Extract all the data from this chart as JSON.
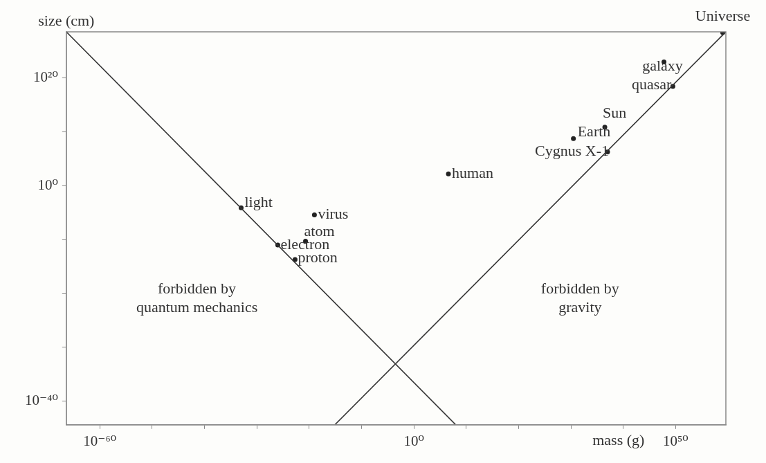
{
  "chart_data": {
    "type": "scatter",
    "xlabel": "mass (g)",
    "ylabel": "size (cm)",
    "log": "xy",
    "grid": false,
    "legend": false,
    "marker": "circle",
    "xlim": [
      4e-67,
      4e+59
    ],
    "ylim": [
      4e-45,
      4e+28
    ],
    "xticks": [
      {
        "value": 1e-60,
        "label": "10⁻⁶⁰"
      },
      {
        "value": 1e-50,
        "label": null
      },
      {
        "value": 1e-40,
        "label": null
      },
      {
        "value": 1e-30,
        "label": null
      },
      {
        "value": 1e-20,
        "label": null
      },
      {
        "value": 1e-10,
        "label": null
      },
      {
        "value": 1,
        "label": "10⁰"
      },
      {
        "value": 10000000000.0,
        "label": null
      },
      {
        "value": 1e+20,
        "label": null
      },
      {
        "value": 1e+30,
        "label": null
      },
      {
        "value": 1e+40,
        "label": null
      },
      {
        "value": 1e+50,
        "label": "10⁵⁰"
      }
    ],
    "yticks": [
      {
        "value": 1e-40,
        "label": "10⁻⁴⁰"
      },
      {
        "value": 1e-30,
        "label": null
      },
      {
        "value": 1e-20,
        "label": null
      },
      {
        "value": 1e-10,
        "label": null
      },
      {
        "value": 1,
        "label": "10⁰"
      },
      {
        "value": 10000000000.0,
        "label": null
      },
      {
        "value": 1e+20,
        "label": "10²⁰"
      }
    ],
    "series": [
      {
        "type": "line",
        "marker": "none",
        "color": "#333333",
        "x": [
          4e-67,
          100000000.0
        ],
        "values": [
          4e+28,
          4e-45
        ]
      },
      {
        "type": "line",
        "marker": "none",
        "color": "#333333",
        "x": [
          8e-16,
          4e+59
        ],
        "values": [
          4e-45,
          4e+28
        ]
      },
      {
        "name": "light",
        "color": "#222222",
        "x": [
          1e-33
        ],
        "values": [
          8e-05
        ]
      },
      {
        "name": "virus",
        "color": "#222222",
        "x": [
          1e-19
        ],
        "values": [
          4e-06
        ]
      },
      {
        "name": "atom",
        "color": "#222222",
        "x": [
          2e-21
        ],
        "values": [
          5e-11
        ]
      },
      {
        "name": "electron",
        "color": "#222222",
        "x": [
          1e-26
        ],
        "values": [
          1e-11
        ]
      },
      {
        "name": "proton",
        "color": "#222222",
        "x": [
          2e-23
        ],
        "values": [
          2e-14
        ]
      },
      {
        "name": "human",
        "color": "#222222",
        "x": [
          4000000.0
        ],
        "values": [
          160
        ]
      },
      {
        "name": "Earth",
        "color": "#222222",
        "x": [
          3e+30
        ],
        "values": [
          600000000.0
        ]
      },
      {
        "name": "Sun",
        "color": "#222222",
        "x": [
          3e+36
        ],
        "values": [
          80000000000.0
        ]
      },
      {
        "name": "Cygnus X-1",
        "color": "#222222",
        "x": [
          1e+37
        ],
        "values": [
          2000000.0
        ]
      },
      {
        "name": "quasar",
        "color": "#222222",
        "x": [
          3e+49
        ],
        "values": [
          3e+18
        ]
      },
      {
        "name": "galaxy",
        "color": "#222222",
        "x": [
          6e+47
        ],
        "values": [
          1e+23
        ]
      },
      {
        "name": "Universe",
        "color": "#222222",
        "x": [
          1e+59
        ],
        "values": [
          3e+28
        ]
      }
    ],
    "annotations": [
      "forbidden by\nquantum mechanics",
      "forbidden by\ngravity"
    ]
  }
}
